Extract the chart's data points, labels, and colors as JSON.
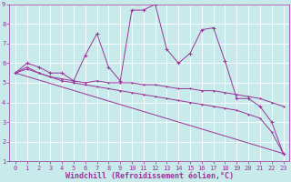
{
  "xlabel": "Windchill (Refroidissement éolien,°C)",
  "ylabel": "",
  "bg_color": "#c8eaea",
  "line_color": "#993399",
  "grid_color": "#ffffff",
  "xlim": [
    -0.5,
    23.5
  ],
  "ylim": [
    1,
    9
  ],
  "xticks": [
    0,
    1,
    2,
    3,
    4,
    5,
    6,
    7,
    8,
    9,
    10,
    11,
    12,
    13,
    14,
    15,
    16,
    17,
    18,
    19,
    20,
    21,
    22,
    23
  ],
  "yticks": [
    1,
    2,
    3,
    4,
    5,
    6,
    7,
    8,
    9
  ],
  "line1_x": [
    0,
    1,
    2,
    3,
    4,
    5,
    6,
    7,
    8,
    9,
    10,
    11,
    12,
    13,
    14,
    15,
    16,
    17,
    18,
    19,
    20,
    21,
    22,
    23
  ],
  "line1_y": [
    5.5,
    6.0,
    5.8,
    5.5,
    5.5,
    5.1,
    6.4,
    7.5,
    5.8,
    5.1,
    8.7,
    8.7,
    9.0,
    6.7,
    6.0,
    6.5,
    7.7,
    7.8,
    6.1,
    4.2,
    4.2,
    3.8,
    3.0,
    1.4
  ],
  "line2_x": [
    0,
    1,
    2,
    3,
    4,
    5,
    6,
    7,
    8,
    9,
    10,
    11,
    12,
    13,
    14,
    15,
    16,
    17,
    18,
    19,
    20,
    21,
    22,
    23
  ],
  "line2_y": [
    5.5,
    5.8,
    5.5,
    5.3,
    5.2,
    5.1,
    5.0,
    5.1,
    5.0,
    5.0,
    5.0,
    4.9,
    4.9,
    4.8,
    4.7,
    4.7,
    4.6,
    4.6,
    4.5,
    4.4,
    4.3,
    4.2,
    4.0,
    3.8
  ],
  "line3_x": [
    0,
    1,
    2,
    3,
    4,
    5,
    6,
    7,
    8,
    9,
    10,
    11,
    12,
    13,
    14,
    15,
    16,
    17,
    18,
    19,
    20,
    21,
    22,
    23
  ],
  "line3_y": [
    5.5,
    5.7,
    5.5,
    5.3,
    5.1,
    5.0,
    4.9,
    4.8,
    4.7,
    4.6,
    4.5,
    4.4,
    4.3,
    4.2,
    4.1,
    4.0,
    3.9,
    3.8,
    3.7,
    3.6,
    3.4,
    3.2,
    2.5,
    1.4
  ],
  "line4_x": [
    0,
    23
  ],
  "line4_y": [
    5.5,
    1.4
  ],
  "tick_fontsize": 5.0,
  "label_fontsize": 6.0,
  "font_family": "monospace"
}
